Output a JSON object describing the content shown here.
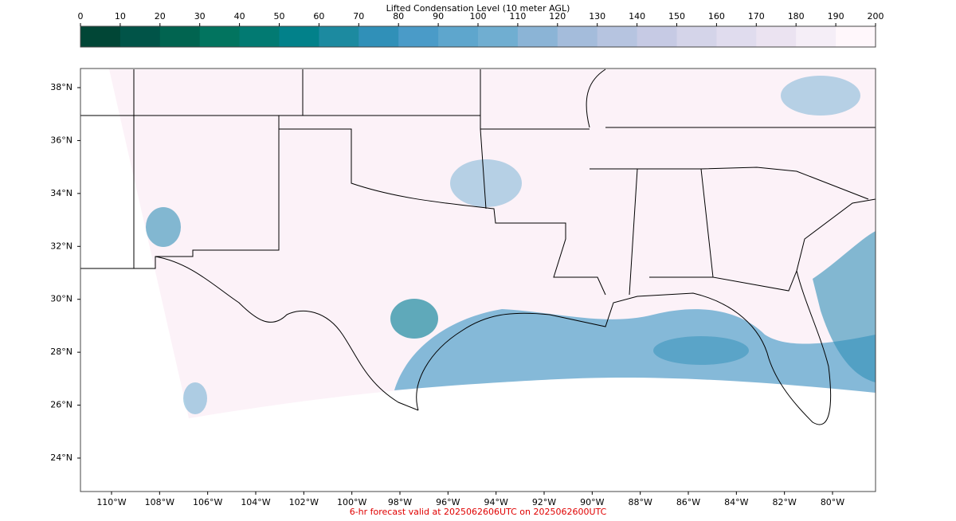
{
  "colorbar": {
    "title": "Lifted Condensation Level (10 meter AGL)",
    "ticks": [
      0,
      10,
      20,
      30,
      40,
      50,
      60,
      70,
      80,
      90,
      100,
      110,
      120,
      130,
      140,
      150,
      160,
      170,
      180,
      190,
      200
    ],
    "colors": [
      "#014636",
      "#015448",
      "#016450",
      "#02745f",
      "#027a72",
      "#02818a",
      "#1c8aa0",
      "#3090b8",
      "#4a9bc8",
      "#5ea6cd",
      "#70aed1",
      "#8bb4d6",
      "#a4bcdb",
      "#b6c4e0",
      "#c6cae4",
      "#d4d4e9",
      "#e0dcee",
      "#ebe3f1",
      "#f5eef7",
      "#fff7fb"
    ]
  },
  "map": {
    "lat_labels": [
      {
        "value": 38,
        "label": "38°N"
      },
      {
        "value": 36,
        "label": "36°N"
      },
      {
        "value": 34,
        "label": "34°N"
      },
      {
        "value": 32,
        "label": "32°N"
      },
      {
        "value": 30,
        "label": "30°N"
      },
      {
        "value": 28,
        "label": "28°N"
      },
      {
        "value": 26,
        "label": "26°N"
      },
      {
        "value": 24,
        "label": "24°N"
      }
    ],
    "lon_labels": [
      {
        "value": -110,
        "label": "110°W"
      },
      {
        "value": -108,
        "label": "108°W"
      },
      {
        "value": -106,
        "label": "106°W"
      },
      {
        "value": -104,
        "label": "104°W"
      },
      {
        "value": -102,
        "label": "102°W"
      },
      {
        "value": -100,
        "label": "100°W"
      },
      {
        "value": -98,
        "label": "98°W"
      },
      {
        "value": -96,
        "label": "96°W"
      },
      {
        "value": -94,
        "label": "94°W"
      },
      {
        "value": -92,
        "label": "92°W"
      },
      {
        "value": -90,
        "label": "90°W"
      },
      {
        "value": -88,
        "label": "88°W"
      },
      {
        "value": -86,
        "label": "86°W"
      },
      {
        "value": -84,
        "label": "84°W"
      },
      {
        "value": -82,
        "label": "82°W"
      },
      {
        "value": -80,
        "label": "80°W"
      }
    ]
  },
  "footer": "6-hr forecast valid at 2025062606UTC on 2025062600UTC"
}
